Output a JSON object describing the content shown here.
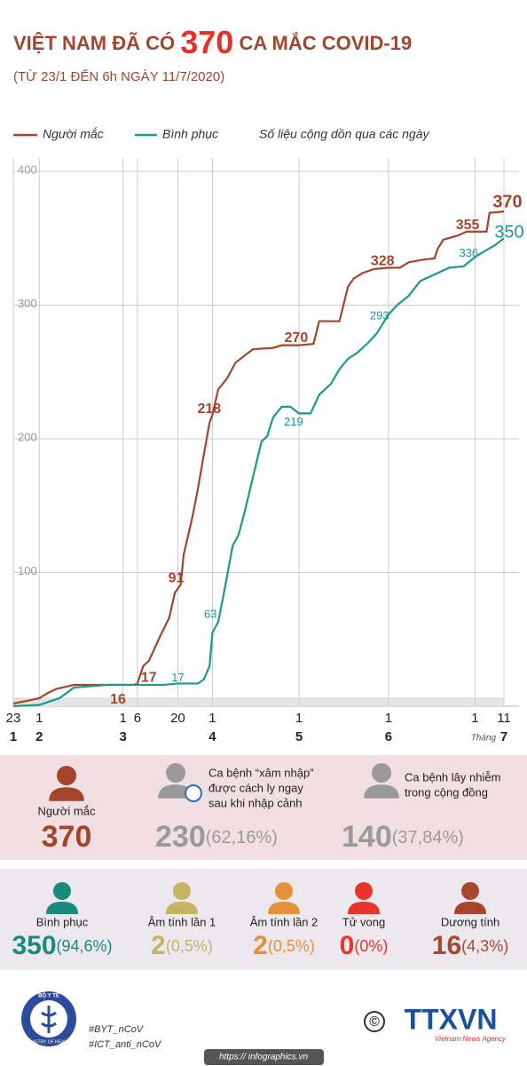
{
  "title_before": "VIỆT NAM ĐÃ CÓ",
  "title_number": 370,
  "title_after": "CA MẮC COVID-19",
  "subtitle": "(TỪ 23/1 ĐẾN 6h NGÀY 11/7/2020)",
  "chart_data": {
    "type": "line",
    "note": "Số liệu cộng dồn qua các ngày",
    "xlim": [
      "2020-01-23",
      "2020-07-11"
    ],
    "xticks": [
      {
        "value": "2020-01-23",
        "label": "23"
      },
      {
        "value": "2020-02-01",
        "label": "1"
      },
      {
        "value": "2020-03-01",
        "label": "1"
      },
      {
        "value": "2020-03-06",
        "label": "6"
      },
      {
        "value": "2020-03-20",
        "label": "20"
      },
      {
        "value": "2020-04-01",
        "label": "1"
      },
      {
        "value": "2020-05-01",
        "label": "1"
      },
      {
        "value": "2020-06-01",
        "label": "1"
      },
      {
        "value": "2020-07-01",
        "label": "1"
      },
      {
        "value": "2020-07-11",
        "label": "11"
      }
    ],
    "x_month_title": "Tháng",
    "x_month_labels": [
      {
        "value": "2020-01-23",
        "label": "1"
      },
      {
        "value": "2020-02-01",
        "label": "2"
      },
      {
        "value": "2020-03-01",
        "label": "3"
      },
      {
        "value": "2020-04-01",
        "label": "4"
      },
      {
        "value": "2020-05-01",
        "label": "5"
      },
      {
        "value": "2020-06-01",
        "label": "6"
      },
      {
        "value": "2020-07-11",
        "label": "7"
      }
    ],
    "ylim": [
      0,
      400
    ],
    "yticks": [
      100,
      200,
      300,
      400
    ],
    "grid": true,
    "series": [
      {
        "name": "Người mắc",
        "color": "#a4452b",
        "x": [
          "2020-01-23",
          "2020-01-30",
          "2020-02-01",
          "2020-02-04",
          "2020-02-07",
          "2020-02-13",
          "2020-02-25",
          "2020-03-05",
          "2020-03-06",
          "2020-03-08",
          "2020-03-10",
          "2020-03-14",
          "2020-03-17",
          "2020-03-19",
          "2020-03-21",
          "2020-03-22",
          "2020-03-25",
          "2020-03-27",
          "2020-03-29",
          "2020-03-31",
          "2020-04-01",
          "2020-04-03",
          "2020-04-06",
          "2020-04-09",
          "2020-04-12",
          "2020-04-15",
          "2020-04-22",
          "2020-04-25",
          "2020-05-01",
          "2020-05-06",
          "2020-05-08",
          "2020-05-15",
          "2020-05-18",
          "2020-05-20",
          "2020-05-23",
          "2020-05-27",
          "2020-06-01",
          "2020-06-05",
          "2020-06-08",
          "2020-06-13",
          "2020-06-17",
          "2020-06-18",
          "2020-06-20",
          "2020-06-25",
          "2020-06-28",
          "2020-07-01",
          "2020-07-05",
          "2020-07-06",
          "2020-07-11"
        ],
        "values": [
          2,
          5,
          6,
          10,
          13,
          16,
          16,
          16,
          17,
          30,
          34,
          53,
          66,
          85,
          91,
          113,
          141,
          163,
          188,
          212,
          218,
          237,
          245,
          257,
          262,
          267,
          268,
          270,
          270,
          271,
          288,
          288,
          314,
          320,
          324,
          327,
          328,
          328,
          332,
          334,
          335,
          342,
          349,
          352,
          355,
          355,
          355,
          369,
          370
        ],
        "point_labels": [
          {
            "x": "2020-02-28",
            "value": 16
          },
          {
            "x": "2020-03-06",
            "value": 17
          },
          {
            "x": "2020-03-21",
            "value": 91
          },
          {
            "x": "2020-04-01",
            "value": 218
          },
          {
            "x": "2020-04-25",
            "value": 270
          },
          {
            "x": "2020-06-01",
            "value": 328
          },
          {
            "x": "2020-06-28",
            "value": 355
          },
          {
            "x": "2020-07-11",
            "value": 370
          }
        ]
      },
      {
        "name": "Bình phục",
        "color": "#1b9a8c",
        "x": [
          "2020-01-23",
          "2020-02-01",
          "2020-02-08",
          "2020-02-13",
          "2020-02-25",
          "2020-03-05",
          "2020-03-10",
          "2020-03-15",
          "2020-03-20",
          "2020-03-27",
          "2020-03-29",
          "2020-03-31",
          "2020-04-01",
          "2020-04-03",
          "2020-04-05",
          "2020-04-08",
          "2020-04-10",
          "2020-04-12",
          "2020-04-15",
          "2020-04-18",
          "2020-04-20",
          "2020-04-22",
          "2020-04-25",
          "2020-04-28",
          "2020-05-01",
          "2020-05-05",
          "2020-05-08",
          "2020-05-12",
          "2020-05-15",
          "2020-05-18",
          "2020-05-21",
          "2020-05-25",
          "2020-05-28",
          "2020-06-01",
          "2020-06-04",
          "2020-06-08",
          "2020-06-12",
          "2020-06-17",
          "2020-06-22",
          "2020-06-27",
          "2020-07-01",
          "2020-07-04",
          "2020-07-08",
          "2020-07-11"
        ],
        "values": [
          0,
          1,
          6,
          14,
          16,
          16,
          16,
          16,
          17,
          17,
          20,
          30,
          55,
          63,
          85,
          120,
          128,
          144,
          171,
          198,
          202,
          216,
          224,
          224,
          219,
          219,
          233,
          241,
          252,
          260,
          264,
          272,
          279,
          293,
          300,
          307,
          318,
          323,
          328,
          329,
          336,
          340,
          345,
          350
        ],
        "point_labels": [
          {
            "x": "2020-03-27",
            "value": 17
          },
          {
            "x": "2020-04-03",
            "value": 63
          },
          {
            "x": "2020-05-01",
            "value": 219
          },
          {
            "x": "2020-06-01",
            "value": 293
          },
          {
            "x": "2020-07-01",
            "value": 336
          },
          {
            "x": "2020-07-11",
            "value": 350
          }
        ]
      }
    ]
  },
  "cases": {
    "label": "Người mắc",
    "count": 370
  },
  "imported": {
    "lines": [
      "Ca bệnh “xâm nhập”",
      "được cách ly ngay",
      "sau khi nhập cảnh"
    ],
    "count": 230,
    "percent": "(62,16%)"
  },
  "community": {
    "lines": [
      "Ca bệnh lây nhiễm",
      "trong cộng đồng"
    ],
    "count": 140,
    "percent": "(37,84%)"
  },
  "outcomes": [
    {
      "label": "Bình phục",
      "count": 350,
      "percent": "(94,6%)"
    },
    {
      "label": "Âm tính lần 1",
      "count": 2,
      "percent": "(0,5%)"
    },
    {
      "label": "Âm tính lần 2",
      "count": 2,
      "percent": "(0,5%)"
    },
    {
      "label": "Tử vong",
      "count": 0,
      "percent": "(0%)"
    },
    {
      "label": "Dương tính",
      "count": 16,
      "percent": "(4,3%)"
    }
  ],
  "footer": {
    "logo_top": "BỘ Y TẾ",
    "logo_bottom": "MINISTRY OF HEALTH",
    "hashtags": [
      "#BYT_nCoV",
      "#ICT_anti_nCoV"
    ],
    "copyright": "©",
    "agency": "TTXVN",
    "agency_sub": "Vietnam News Agency",
    "url": "https:// infographics.vn"
  }
}
